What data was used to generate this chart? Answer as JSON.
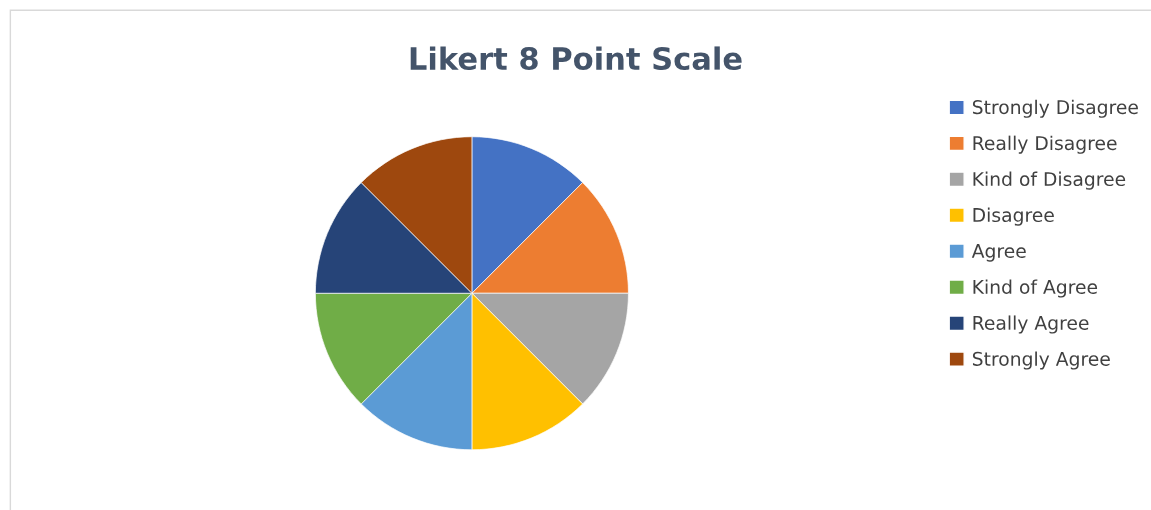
{
  "chart_data": {
    "type": "pie",
    "title": "Likert 8 Point Scale",
    "categories": [
      "Strongly Disagree",
      "Really Disagree",
      "Kind of Disagree",
      "Disagree",
      "Agree",
      "Kind of Agree",
      "Really Agree",
      "Strongly Agree"
    ],
    "values": [
      12.5,
      12.5,
      12.5,
      12.5,
      12.5,
      12.5,
      12.5,
      12.5
    ],
    "colors": [
      "#4472c4",
      "#ed7d31",
      "#a5a5a5",
      "#ffc000",
      "#5b9bd5",
      "#70ad47",
      "#264478",
      "#9e480e"
    ],
    "legend": "right"
  }
}
